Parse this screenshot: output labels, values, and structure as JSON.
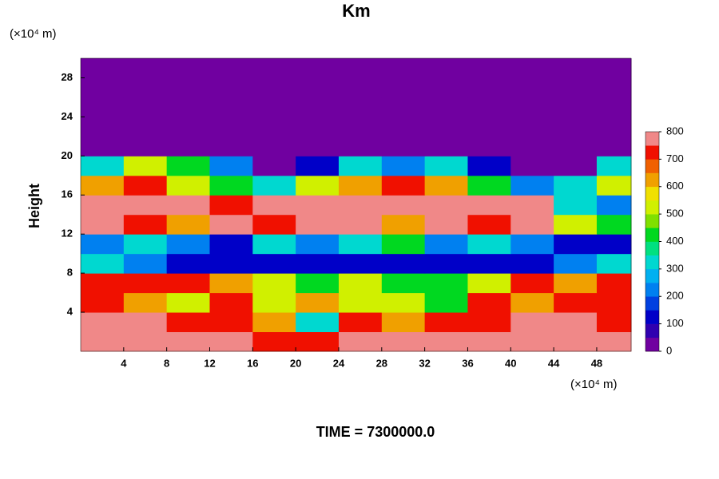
{
  "chart_data": {
    "type": "heatmap",
    "title": "Km",
    "y_label": "Height",
    "y_unit": "(×10⁴ m)",
    "x_unit": "(×10⁴ m)",
    "footer": "TIME = 7300000.0",
    "xlim": [
      0,
      51.2
    ],
    "ylim": [
      0,
      30
    ],
    "xticks": [
      4,
      8,
      12,
      16,
      20,
      24,
      28,
      32,
      36,
      40,
      44,
      48
    ],
    "yticks": [
      4,
      8,
      12,
      16,
      20,
      24,
      28
    ],
    "x": [
      2,
      6,
      10,
      14,
      18,
      22,
      26,
      30,
      34,
      38,
      42,
      46,
      50
    ],
    "y": [
      1,
      3,
      5,
      7,
      9,
      11,
      13,
      15,
      17,
      19,
      21,
      23,
      25,
      27,
      29
    ],
    "z": [
      [
        800,
        800,
        800,
        800,
        700,
        700,
        800,
        800,
        800,
        800,
        800,
        800,
        800
      ],
      [
        800,
        800,
        700,
        700,
        600,
        300,
        700,
        600,
        700,
        700,
        800,
        800,
        700
      ],
      [
        700,
        600,
        500,
        700,
        500,
        600,
        500,
        500,
        400,
        700,
        600,
        700,
        700
      ],
      [
        700,
        700,
        700,
        600,
        500,
        400,
        500,
        400,
        400,
        500,
        700,
        600,
        700
      ],
      [
        300,
        200,
        100,
        100,
        100,
        100,
        100,
        100,
        100,
        100,
        100,
        200,
        300
      ],
      [
        200,
        300,
        200,
        100,
        300,
        200,
        300,
        400,
        200,
        300,
        200,
        100,
        100
      ],
      [
        800,
        700,
        600,
        800,
        700,
        800,
        800,
        600,
        800,
        700,
        800,
        500,
        400
      ],
      [
        800,
        800,
        800,
        700,
        800,
        800,
        800,
        800,
        800,
        800,
        800,
        300,
        200
      ],
      [
        600,
        700,
        500,
        400,
        300,
        500,
        600,
        700,
        600,
        400,
        200,
        300,
        500
      ],
      [
        300,
        500,
        400,
        200,
        0,
        100,
        300,
        200,
        300,
        100,
        0,
        0,
        300
      ],
      [
        0,
        0,
        0,
        0,
        0,
        0,
        0,
        0,
        0,
        0,
        0,
        0,
        0
      ],
      [
        0,
        0,
        0,
        0,
        0,
        0,
        0,
        0,
        0,
        0,
        0,
        0,
        0
      ],
      [
        0,
        0,
        0,
        0,
        0,
        0,
        0,
        0,
        0,
        0,
        0,
        0,
        0
      ],
      [
        0,
        0,
        0,
        0,
        0,
        0,
        0,
        0,
        0,
        0,
        0,
        0,
        0
      ],
      [
        0,
        0,
        0,
        0,
        0,
        0,
        0,
        0,
        0,
        0,
        0,
        0,
        0
      ]
    ],
    "zlim": [
      0,
      800
    ],
    "zticks": [
      0,
      100,
      200,
      300,
      400,
      500,
      600,
      700,
      800
    ],
    "colors": [
      "#7000a0",
      "#3000b0",
      "#0000c8",
      "#0040e0",
      "#0080f0",
      "#00b0f0",
      "#00d8d0",
      "#00e080",
      "#00d820",
      "#80e000",
      "#d0f000",
      "#f0e000",
      "#f0a000",
      "#f06000",
      "#f01000",
      "#f08888"
    ]
  }
}
